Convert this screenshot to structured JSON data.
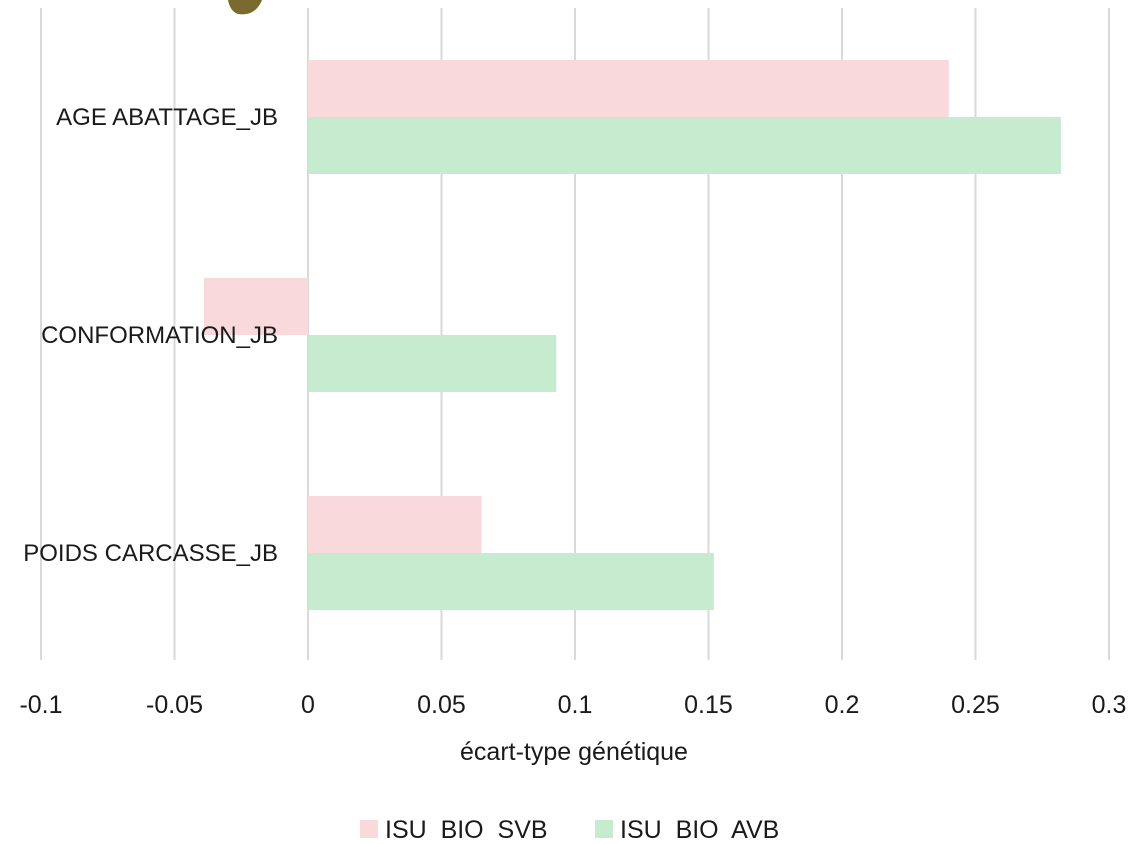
{
  "chart_data": {
    "type": "bar",
    "orientation": "horizontal",
    "categories": [
      "AGE ABATTAGE_JB",
      "CONFORMATION_JB",
      "POIDS CARCASSE_JB"
    ],
    "series": [
      {
        "name": "ISU  BIO  SVB",
        "color": "#f9d9dc",
        "values": [
          0.24,
          -0.039,
          0.065
        ]
      },
      {
        "name": "ISU  BIO  AVB",
        "color": "#c6ebcf",
        "values": [
          0.282,
          0.093,
          0.152
        ]
      }
    ],
    "xticks": [
      "-0.1",
      "-0.05",
      "0",
      "0.05",
      "0.1",
      "0.15",
      "0.2",
      "0.25",
      "0.3"
    ],
    "xlim": [
      -0.1,
      0.3
    ],
    "xlabel": "écart-type génétique",
    "ylabel": "",
    "title": "",
    "grid": "vertical",
    "legend": "bottom-center"
  }
}
